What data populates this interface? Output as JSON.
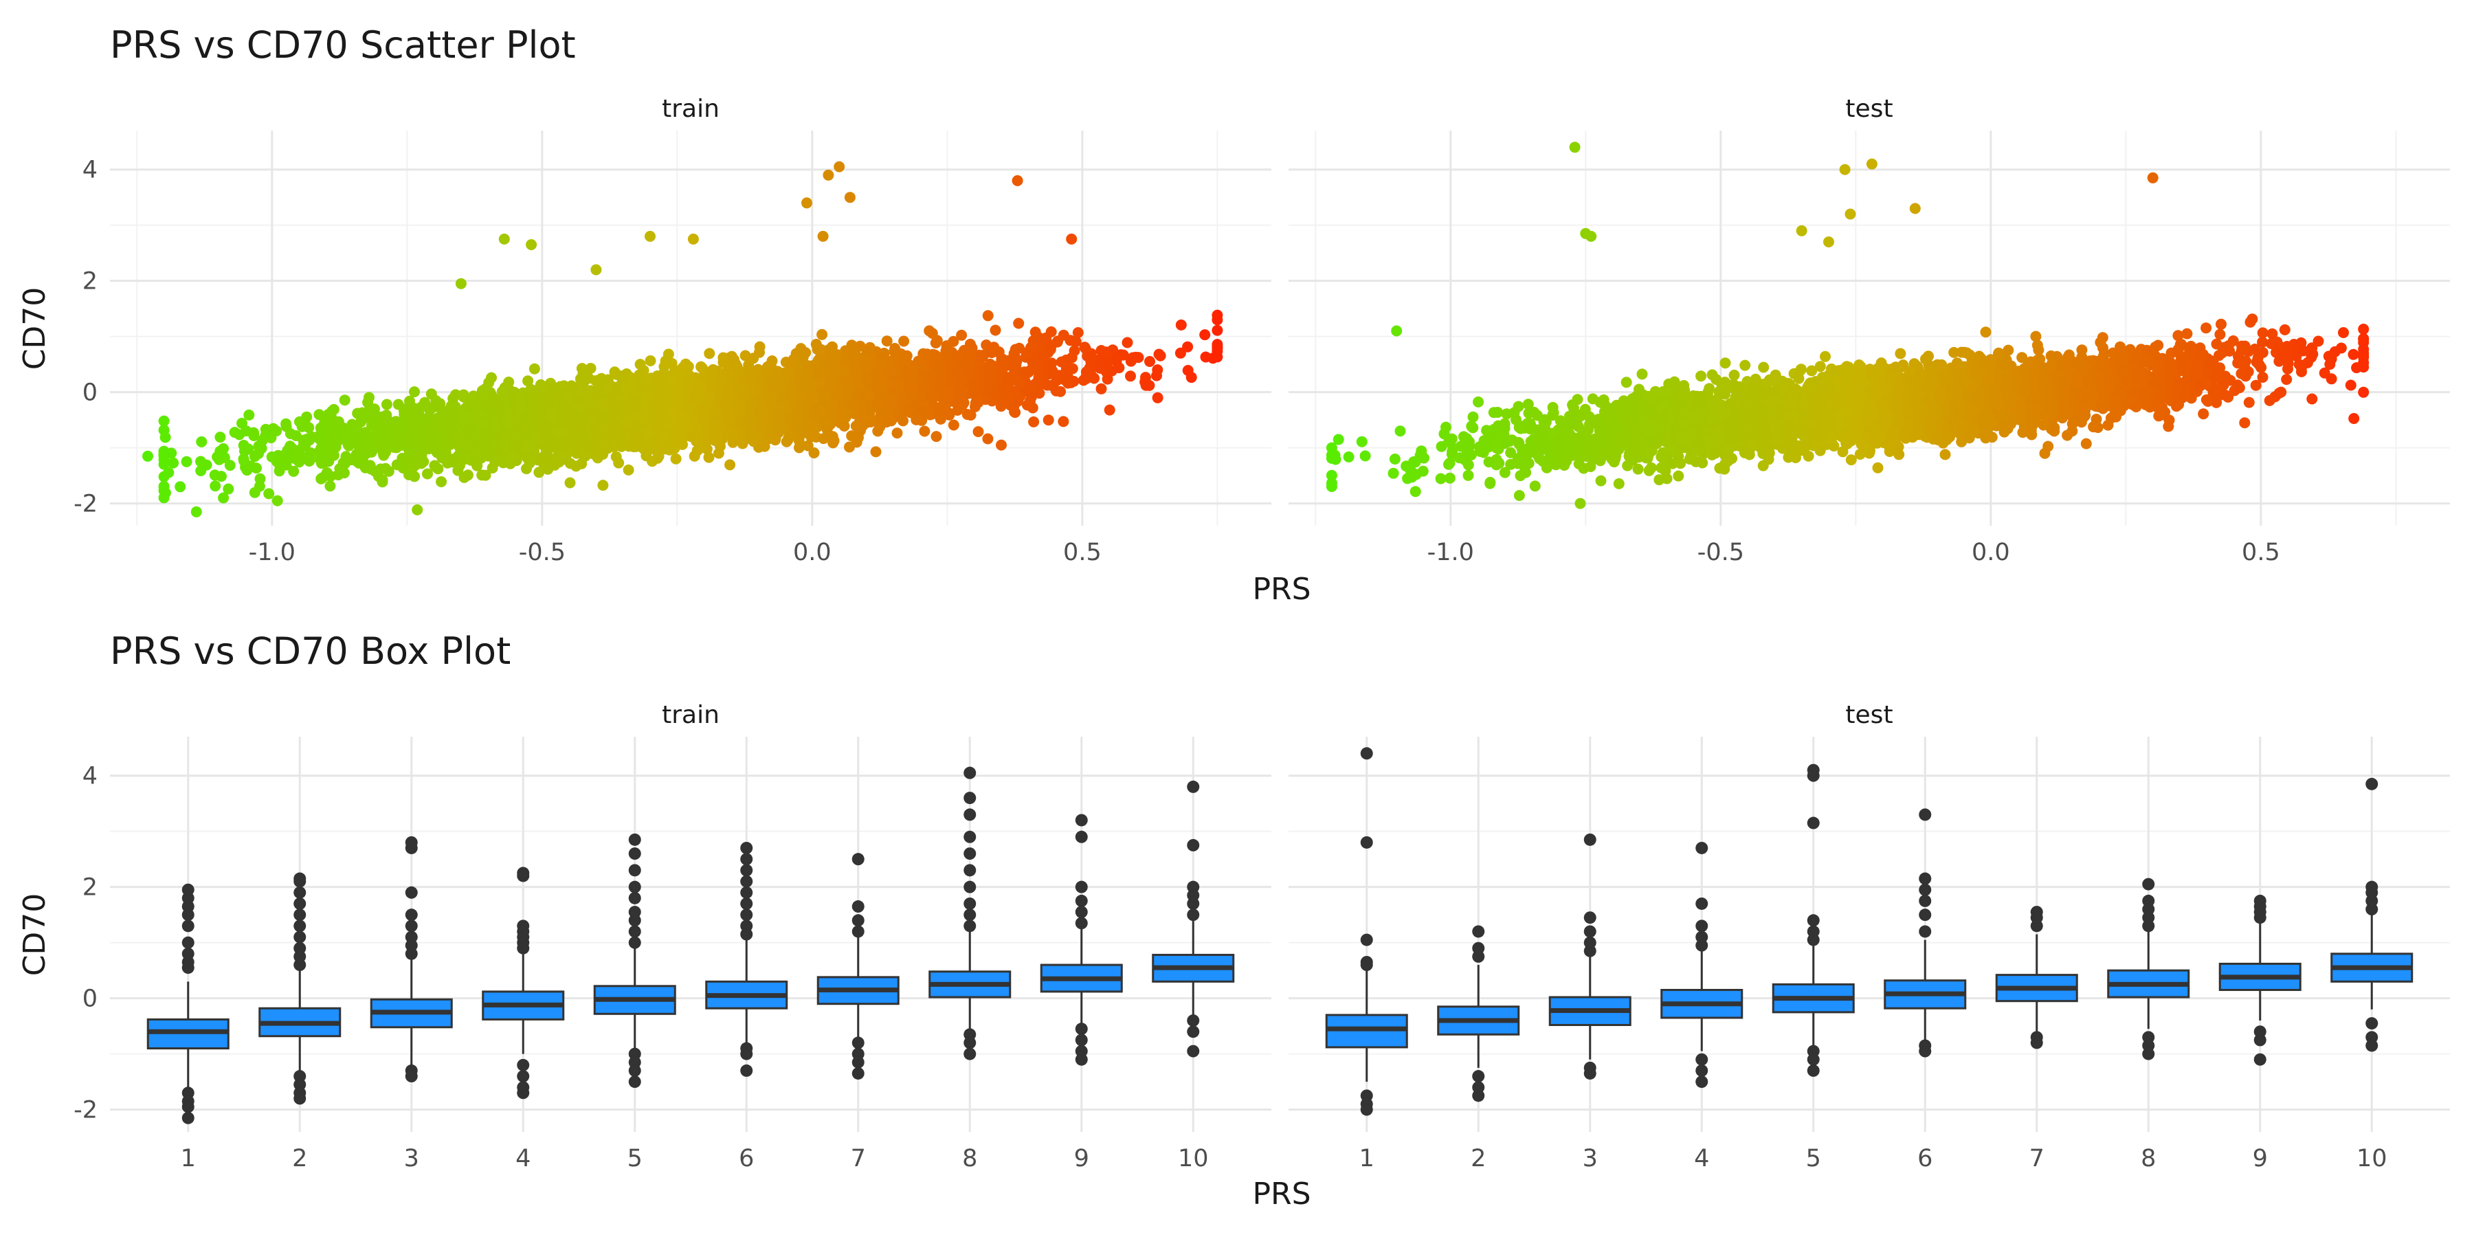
{
  "chart_data": [
    {
      "type": "scatter",
      "title": "PRS vs CD70 Scatter Plot",
      "xlabel": "PRS",
      "ylabel": "CD70",
      "xlim": [
        -1.3,
        0.85
      ],
      "ylim": [
        -2.4,
        4.7
      ],
      "xticks": [
        "-1.0",
        "-0.5",
        "0.0",
        "0.5"
      ],
      "yticks": [
        "-2",
        "0",
        "2",
        "4"
      ],
      "color_scale": {
        "low": "#55ee00",
        "mid": "#c8b400",
        "high": "#ff2400"
      },
      "grid": true,
      "legend": "none",
      "panels": [
        {
          "label": "train",
          "trend": {
            "x_range": [
              -1.2,
              0.75
            ],
            "slope": 1.35,
            "intercept": -0.05,
            "noise_sd": 0.38
          },
          "points": [
            {
              "x": -1.23,
              "y": -1.15
            },
            {
              "x": -1.14,
              "y": -2.15
            },
            {
              "x": -1.17,
              "y": -1.7
            },
            {
              "x": -1.09,
              "y": -1.9
            },
            {
              "x": -0.99,
              "y": -1.95
            },
            {
              "x": -0.57,
              "y": 2.75
            },
            {
              "x": -0.52,
              "y": 2.65
            },
            {
              "x": -0.3,
              "y": 2.8
            },
            {
              "x": -0.22,
              "y": 2.75
            },
            {
              "x": 0.03,
              "y": 3.9
            },
            {
              "x": 0.05,
              "y": 4.05
            },
            {
              "x": -0.01,
              "y": 3.4
            },
            {
              "x": 0.07,
              "y": 3.5
            },
            {
              "x": 0.02,
              "y": 2.8
            },
            {
              "x": 0.38,
              "y": 3.8
            },
            {
              "x": 0.48,
              "y": 2.75
            },
            {
              "x": 0.75,
              "y": 1.3
            },
            {
              "x": 0.35,
              "y": -0.95
            },
            {
              "x": -0.4,
              "y": 2.2
            },
            {
              "x": -0.65,
              "y": 1.95
            }
          ]
        },
        {
          "label": "test",
          "trend": {
            "x_range": [
              -1.22,
              0.69
            ],
            "slope": 1.35,
            "intercept": -0.05,
            "noise_sd": 0.38
          },
          "points": [
            {
              "x": -0.77,
              "y": 4.4
            },
            {
              "x": -0.75,
              "y": 2.85
            },
            {
              "x": -0.74,
              "y": 2.8
            },
            {
              "x": -0.27,
              "y": 4.0
            },
            {
              "x": -0.22,
              "y": 4.1
            },
            {
              "x": -0.26,
              "y": 3.2
            },
            {
              "x": -0.14,
              "y": 3.3
            },
            {
              "x": -0.35,
              "y": 2.9
            },
            {
              "x": -0.3,
              "y": 2.7
            },
            {
              "x": 0.3,
              "y": 3.85
            },
            {
              "x": -1.1,
              "y": 1.1
            },
            {
              "x": -1.22,
              "y": -1.0
            },
            {
              "x": -0.76,
              "y": -2.0
            },
            {
              "x": 0.69,
              "y": 0.65
            },
            {
              "x": 0.1,
              "y": -1.1
            },
            {
              "x": 0.47,
              "y": -0.55
            }
          ]
        }
      ]
    },
    {
      "type": "box",
      "title": "PRS vs CD70 Box Plot",
      "xlabel": "PRS",
      "ylabel": "CD70",
      "ylim": [
        -2.4,
        4.7
      ],
      "yticks": [
        "-2",
        "0",
        "2",
        "4"
      ],
      "categories": [
        "1",
        "2",
        "3",
        "4",
        "5",
        "6",
        "7",
        "8",
        "9",
        "10"
      ],
      "box_fill": "#1e90ff",
      "box_stroke": "#333333",
      "grid": true,
      "panels": [
        {
          "label": "train",
          "boxes": [
            {
              "q1": -0.9,
              "median": -0.6,
              "q3": -0.38,
              "low": -1.6,
              "high": 0.3,
              "outliers": [
                0.55,
                0.65,
                0.8,
                1.0,
                1.3,
                1.5,
                1.65,
                1.8,
                1.95,
                -1.7,
                -1.85,
                -1.95,
                -2.15
              ]
            },
            {
              "q1": -0.68,
              "median": -0.45,
              "q3": -0.18,
              "low": -1.3,
              "high": 0.5,
              "outliers": [
                0.6,
                0.75,
                0.9,
                1.1,
                1.3,
                1.5,
                1.7,
                1.9,
                2.1,
                2.15,
                -1.4,
                -1.55,
                -1.7,
                -1.8
              ]
            },
            {
              "q1": -0.52,
              "median": -0.25,
              "q3": -0.02,
              "low": -1.2,
              "high": 0.7,
              "outliers": [
                0.8,
                0.95,
                1.1,
                1.3,
                1.5,
                1.9,
                2.7,
                2.8,
                -1.3,
                -1.4
              ]
            },
            {
              "q1": -0.38,
              "median": -0.12,
              "q3": 0.12,
              "low": -1.0,
              "high": 0.85,
              "outliers": [
                0.9,
                1.0,
                1.1,
                1.2,
                1.3,
                2.2,
                2.25,
                -1.2,
                -1.4,
                -1.6,
                -1.7
              ]
            },
            {
              "q1": -0.28,
              "median": -0.02,
              "q3": 0.22,
              "low": -0.9,
              "high": 0.95,
              "outliers": [
                1.0,
                1.2,
                1.4,
                1.55,
                1.8,
                2.0,
                2.3,
                2.6,
                2.85,
                -1.0,
                -1.15,
                -1.3,
                -1.5
              ]
            },
            {
              "q1": -0.18,
              "median": 0.05,
              "q3": 0.3,
              "low": -0.8,
              "high": 1.05,
              "outliers": [
                1.15,
                1.3,
                1.5,
                1.7,
                1.9,
                2.1,
                2.3,
                2.5,
                2.7,
                -0.9,
                -1.0,
                -1.3
              ]
            },
            {
              "q1": -0.1,
              "median": 0.15,
              "q3": 0.38,
              "low": -0.7,
              "high": 1.1,
              "outliers": [
                1.2,
                1.4,
                1.65,
                2.5,
                -0.8,
                -1.0,
                -1.15,
                -1.35
              ]
            },
            {
              "q1": 0.02,
              "median": 0.25,
              "q3": 0.48,
              "low": -0.6,
              "high": 1.2,
              "outliers": [
                1.3,
                1.5,
                1.7,
                2.0,
                2.3,
                2.6,
                2.9,
                3.3,
                3.6,
                4.05,
                -0.65,
                -0.8,
                -1.0
              ]
            },
            {
              "q1": 0.12,
              "median": 0.35,
              "q3": 0.6,
              "low": -0.45,
              "high": 1.25,
              "outliers": [
                1.35,
                1.55,
                1.75,
                2.0,
                2.9,
                3.2,
                -0.55,
                -0.75,
                -0.95,
                -1.1
              ]
            },
            {
              "q1": 0.3,
              "median": 0.55,
              "q3": 0.78,
              "low": -0.3,
              "high": 1.4,
              "outliers": [
                1.5,
                1.7,
                1.85,
                2.0,
                2.75,
                3.8,
                -0.4,
                -0.6,
                -0.95
              ]
            }
          ]
        },
        {
          "label": "test",
          "boxes": [
            {
              "q1": -0.88,
              "median": -0.55,
              "q3": -0.3,
              "low": -1.5,
              "high": 0.5,
              "outliers": [
                0.6,
                0.65,
                1.05,
                2.8,
                4.4,
                -1.75,
                -1.9,
                -2.0
              ]
            },
            {
              "q1": -0.65,
              "median": -0.4,
              "q3": -0.15,
              "low": -1.25,
              "high": 0.6,
              "outliers": [
                0.75,
                0.9,
                1.2,
                -1.4,
                -1.6,
                -1.75
              ]
            },
            {
              "q1": -0.48,
              "median": -0.22,
              "q3": 0.02,
              "low": -1.1,
              "high": 0.75,
              "outliers": [
                0.85,
                1.0,
                1.2,
                1.45,
                2.85,
                -1.25,
                -1.35
              ]
            },
            {
              "q1": -0.35,
              "median": -0.1,
              "q3": 0.15,
              "low": -0.95,
              "high": 0.85,
              "outliers": [
                0.95,
                1.1,
                1.3,
                1.7,
                2.7,
                -1.1,
                -1.3,
                -1.5
              ]
            },
            {
              "q1": -0.25,
              "median": 0.0,
              "q3": 0.25,
              "low": -0.85,
              "high": 0.95,
              "outliers": [
                1.05,
                1.2,
                1.4,
                3.15,
                4.0,
                4.1,
                -0.95,
                -1.1,
                -1.3
              ]
            },
            {
              "q1": -0.18,
              "median": 0.08,
              "q3": 0.32,
              "low": -0.75,
              "high": 1.05,
              "outliers": [
                1.2,
                1.5,
                1.75,
                1.95,
                2.15,
                3.3,
                -0.85,
                -0.95
              ]
            },
            {
              "q1": -0.05,
              "median": 0.18,
              "q3": 0.42,
              "low": -0.6,
              "high": 1.15,
              "outliers": [
                1.3,
                1.45,
                1.55,
                -0.7,
                -0.8
              ]
            },
            {
              "q1": 0.02,
              "median": 0.25,
              "q3": 0.5,
              "low": -0.55,
              "high": 1.2,
              "outliers": [
                1.3,
                1.45,
                1.6,
                1.75,
                2.05,
                -0.7,
                -0.85,
                -1.0
              ]
            },
            {
              "q1": 0.15,
              "median": 0.38,
              "q3": 0.62,
              "low": -0.4,
              "high": 1.35,
              "outliers": [
                1.45,
                1.55,
                1.65,
                1.75,
                -0.6,
                -0.75,
                -1.1
              ]
            },
            {
              "q1": 0.3,
              "median": 0.55,
              "q3": 0.8,
              "low": -0.2,
              "high": 1.5,
              "outliers": [
                1.6,
                1.75,
                1.9,
                2.0,
                3.85,
                -0.45,
                -0.7,
                -0.85
              ]
            }
          ]
        }
      ]
    }
  ]
}
